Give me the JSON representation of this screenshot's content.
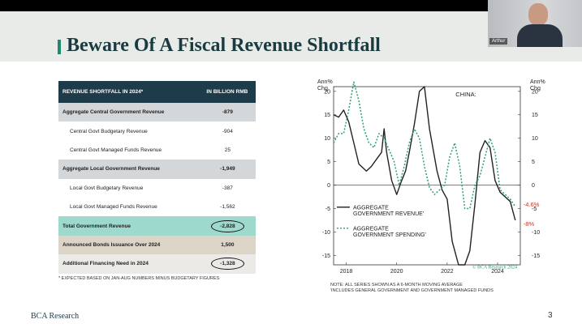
{
  "slide": {
    "title": "Beware Of A Fiscal Revenue Shortfall",
    "page_number": "3",
    "logo": "BCA Research"
  },
  "video": {
    "participant": "Arthur"
  },
  "table": {
    "header_label": "REVENUE SHORTFALL IN 2024*",
    "header_value": "IN BILLION RMB",
    "rows": [
      {
        "label": "Aggregate Central Government Revenue",
        "value": "-879"
      },
      {
        "label": "Central Govt Budgetary Revenue",
        "value": "-904"
      },
      {
        "label": "Central Govt Managed Funds Revenue",
        "value": "25"
      },
      {
        "label": "Aggregate Local Government Revenue",
        "value": "-1,949"
      },
      {
        "label": "Local Govt Budgetary Revenue",
        "value": "-387"
      },
      {
        "label": "Local Govt Managed Funds Revenue",
        "value": "-1,562"
      },
      {
        "label": "Total Government Revenue",
        "value": "-2,828"
      },
      {
        "label": "Announced Bonds Issuance Over 2024",
        "value": "1,500"
      },
      {
        "label": "Additional Financing Need in 2024",
        "value": "-1,328"
      }
    ],
    "footnote": "* EXPECTED BASED ON JAN-AUG NUMBERS MINUS BUDGETARY FIGURES"
  },
  "chart_notes": [
    "NOTE: ALL SERIES SHOWN AS A 6-MONTH MOVING AVERAGE",
    "'INCLUDES GENERAL GOVERNMENT AND GOVERNMENT MANAGED FUNDS"
  ],
  "colors": {
    "revenue": "#222222",
    "spending": "#2aa36b",
    "annotation": "#c0392b",
    "header": "#1d3b49"
  },
  "chart_data": {
    "type": "line",
    "title": "CHINA:",
    "ylabel_left": "Ann% Chg",
    "ylabel_right": "Ann% Chg",
    "ylim": [
      -17,
      21
    ],
    "yticks": [
      20,
      15,
      10,
      5,
      0,
      -5,
      -10,
      -15
    ],
    "xlim": [
      2017.5,
      2024.9
    ],
    "xticks": [
      2018,
      2020,
      2022,
      2024
    ],
    "credit": "© BCA Research 2024",
    "series": [
      {
        "name": "AGGREGATE GOVERNMENT REVENUE'",
        "style": "solid",
        "end_label": "-8%",
        "x": [
          2017.5,
          2017.7,
          2017.9,
          2018.1,
          2018.3,
          2018.5,
          2018.8,
          2019.0,
          2019.2,
          2019.4,
          2019.5,
          2019.6,
          2019.8,
          2020.0,
          2020.2,
          2020.35,
          2020.5,
          2020.7,
          2020.9,
          2021.1,
          2021.3,
          2021.6,
          2021.8,
          2022.0,
          2022.2,
          2022.45,
          2022.7,
          2022.9,
          2023.1,
          2023.3,
          2023.5,
          2023.7,
          2023.9,
          2024.1,
          2024.3,
          2024.5,
          2024.7
        ],
        "y": [
          15,
          14.5,
          16,
          13.5,
          9,
          4.5,
          3,
          4,
          5.5,
          7,
          12,
          7,
          1,
          -2,
          1,
          3,
          7,
          13,
          20,
          21,
          12,
          3,
          -1,
          -3,
          -12,
          -17,
          -17,
          -14,
          -4,
          7,
          9.5,
          8,
          1,
          -1.5,
          -2.5,
          -3.5,
          -7.5
        ]
      },
      {
        "name": "AGGREGATE GOVERNMENT SPENDING'",
        "style": "dotted",
        "end_label": "-4.6%",
        "x": [
          2017.5,
          2017.7,
          2017.9,
          2018.1,
          2018.3,
          2018.5,
          2018.7,
          2018.9,
          2019.1,
          2019.3,
          2019.5,
          2019.7,
          2019.9,
          2020.1,
          2020.3,
          2020.5,
          2020.7,
          2020.9,
          2021.1,
          2021.3,
          2021.5,
          2021.7,
          2021.9,
          2022.1,
          2022.3,
          2022.5,
          2022.7,
          2022.9,
          2023.1,
          2023.3,
          2023.5,
          2023.7,
          2023.9,
          2024.1,
          2024.3,
          2024.5,
          2024.7
        ],
        "y": [
          9,
          11,
          11,
          16,
          22,
          18,
          12,
          9,
          8,
          11,
          10,
          7.5,
          5,
          0,
          4,
          9,
          12,
          10,
          4,
          -0.5,
          -2,
          -1,
          0,
          6,
          9,
          4,
          -5,
          -5,
          0,
          2,
          6,
          10,
          7,
          -1,
          -2,
          -3,
          -4.6
        ]
      }
    ]
  }
}
